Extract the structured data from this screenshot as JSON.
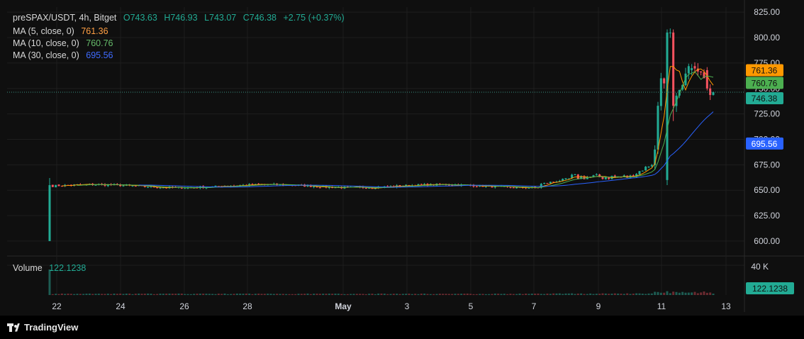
{
  "legend": {
    "symbol": "preSPAX/USDT, 4h, Bitget",
    "o": "O743.63",
    "h": "H746.93",
    "l": "L743.07",
    "c": "C746.38",
    "change": "+2.75 (+0.37%)",
    "ma5_label": "MA (5, close, 0)",
    "ma5_value": "761.36",
    "ma10_label": "MA (10, close, 0)",
    "ma10_value": "760.76",
    "ma30_label": "MA (30, close, 0)",
    "ma30_value": "695.56",
    "volume_label": "Volume",
    "volume_value": "122.1238"
  },
  "branding": {
    "name": "TradingView"
  },
  "colors": {
    "up": "#22ab94",
    "down": "#f7525f",
    "ma5": "#ff9800",
    "ma10": "#4caf50",
    "ma30": "#2962ff",
    "background": "#0f0f0f"
  },
  "chart_data": {
    "type": "candlestick",
    "price_axis": {
      "ticks": [
        "825.00",
        "800.00",
        "775.00",
        "750.00",
        "725.00",
        "700.00",
        "675.00",
        "650.00",
        "625.00",
        "600.00"
      ],
      "ylim": [
        586,
        830
      ],
      "price_labels": [
        {
          "value": 761.36,
          "text": "761.36",
          "color": "#ff9800"
        },
        {
          "value": 760.76,
          "text": "760.76",
          "color": "#4caf50"
        },
        {
          "value": 746.38,
          "text": "746.38",
          "color": "#22ab94"
        },
        {
          "value": 695.56,
          "text": "695.56",
          "color": "#2962ff"
        }
      ],
      "last_price": 746.38
    },
    "time_axis": {
      "ticks": [
        "22",
        "24",
        "26",
        "28",
        "May",
        "3",
        "5",
        "7",
        "9",
        "11",
        "13"
      ]
    },
    "volume_axis": {
      "ticks": [
        "40 K"
      ],
      "current_label": "122.1238"
    },
    "highlights": [
      {
        "index": 0,
        "o": 600,
        "h": 662,
        "l": 600,
        "c": 655,
        "v": 40000
      },
      {
        "index": 201,
        "o": 660,
        "h": 808,
        "l": 655,
        "c": 805,
        "v": 900
      },
      {
        "index": 203,
        "o": 805,
        "h": 808,
        "l": 718,
        "c": 733,
        "v": 700
      },
      {
        "index": 209,
        "o": 768,
        "h": 774,
        "l": 763,
        "c": 770,
        "v": 400
      },
      {
        "index": 214,
        "o": 768,
        "h": 771,
        "l": 748,
        "c": 750,
        "v": 300
      },
      {
        "index": 216,
        "o": 743.63,
        "h": 746.93,
        "l": 743.07,
        "c": 746.38,
        "v": 122.1238
      }
    ]
  }
}
